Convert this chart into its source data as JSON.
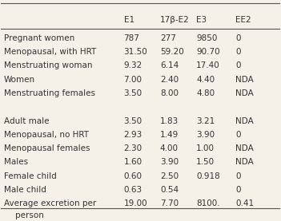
{
  "columns": [
    "",
    "E1",
    "17β-E2",
    "E3",
    "EE2"
  ],
  "rows": [
    [
      "Pregnant women",
      "787",
      "277",
      "9850",
      "0"
    ],
    [
      "Menopausal, with HRT",
      "31.50",
      "59.20",
      "90.70",
      "0"
    ],
    [
      "Menstruating woman",
      "9.32",
      "6.14",
      "17.40",
      "0"
    ],
    [
      "Women",
      "7.00",
      "2.40",
      "4.40",
      "NDA"
    ],
    [
      "Menstruating females",
      "3.50",
      "8.00",
      "4.80",
      "NDA"
    ],
    [
      "",
      "",
      "",
      "",
      ""
    ],
    [
      "Adult male",
      "3.50",
      "1.83",
      "3.21",
      "NDA"
    ],
    [
      "Menopausal, no HRT",
      "2.93",
      "1.49",
      "3.90",
      "0"
    ],
    [
      "Menopausal females",
      "2.30",
      "4.00",
      "1.00",
      "NDA"
    ],
    [
      "Males",
      "1.60",
      "3.90",
      "1.50",
      "NDA"
    ],
    [
      "Female child",
      "0.60",
      "2.50",
      "0.918",
      "0"
    ],
    [
      "Male child",
      "0.63",
      "0.54",
      "",
      "0"
    ],
    [
      "Average excretion per\nperson",
      "19.00",
      "7.70",
      "8100.",
      "0.41"
    ]
  ],
  "bg_color": "#f5f0e8",
  "header_line_color": "#555555",
  "text_color": "#333333",
  "font_size": 7.5
}
